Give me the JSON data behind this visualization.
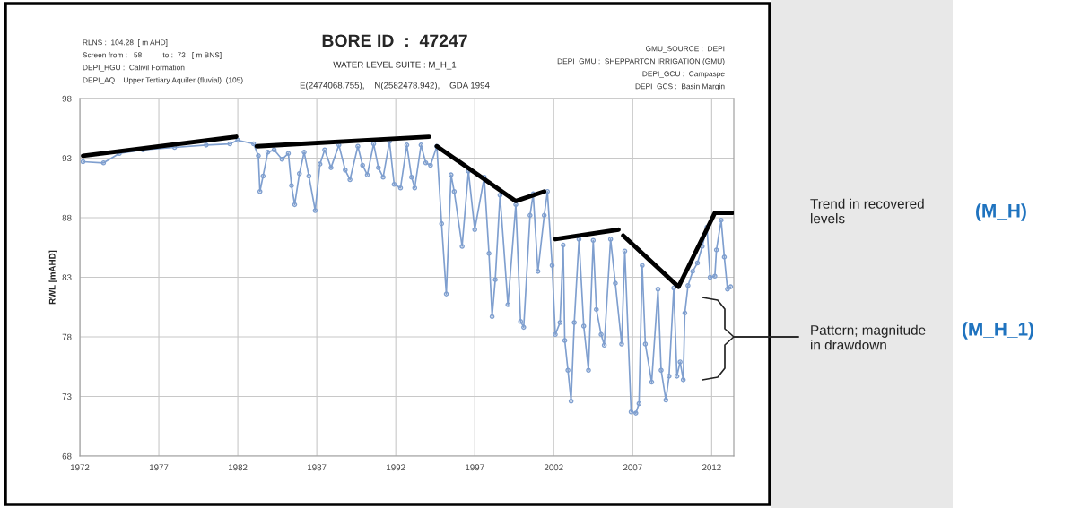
{
  "chart_data": {
    "type": "line",
    "title": "BORE ID  :  47247",
    "subtitle": "WATER LEVEL SUITE : M_H_1",
    "ylabel": "RWL [mAHD]",
    "xlim": [
      1972,
      2013.4
    ],
    "xticks": [
      1972,
      1977,
      1982,
      1987,
      1992,
      1997,
      2002,
      2007,
      2012
    ],
    "ylim": [
      68,
      98
    ],
    "yticks": [
      68,
      73,
      78,
      83,
      88,
      93,
      98
    ],
    "grid": true,
    "annotations": [
      "RLNS :  104.28  [ m AHD]",
      "Screen from :   58          to :  73   [ m BNS]",
      "DEPI_HGU :  Calivil Formation",
      "DEPI_AQ :  Upper Tertiary Aquifer (fluvial)  (105)",
      "E(2474068.755),    N(2582478.942),    GDA 1994",
      "GMU_SOURCE :  DEPI",
      "DEPI_GMU :  SHEPPARTON IRRIGATION (GMU)",
      "DEPI_GCU :  Campaspe",
      "DEPI_GCS :  Basin Margin",
      "Trend in recovered\nlevels",
      "(M_H)",
      "Pattern; magnitude\nin drawdown",
      "(M_H_1)"
    ],
    "series": [
      {
        "color": "#7f9fcf",
        "marker": "circle",
        "x": [
          1972.2,
          1973.5,
          1974.5,
          1976,
          1978,
          1980,
          1981.5,
          1982,
          1983,
          1983.3,
          1983.4,
          1983.6,
          1983.9,
          1984.3,
          1984.8,
          1985.2,
          1985.4,
          1985.6,
          1985.9,
          1986.2,
          1986.5,
          1986.9,
          1987.2,
          1987.5,
          1987.9,
          1988.4,
          1988.8,
          1989.1,
          1989.6,
          1989.9,
          1990.2,
          1990.6,
          1990.9,
          1991.2,
          1991.6,
          1991.9,
          1992.3,
          1992.7,
          1993.0,
          1993.2,
          1993.6,
          1993.9,
          1994.2,
          1994.6,
          1994.9,
          1995.2,
          1995.5,
          1995.7,
          1996.2,
          1996.6,
          1997.0,
          1997.6,
          1997.9,
          1998.1,
          1998.3,
          1998.6,
          1999.1,
          1999.6,
          1999.9,
          2000.1,
          2000.5,
          2000.7,
          2001.0,
          2001.4,
          2001.6,
          2001.9,
          2002.1,
          2002.4,
          2002.6,
          2002.7,
          2002.9,
          2003.1,
          2003.3,
          2003.6,
          2003.9,
          2004.2,
          2004.5,
          2004.7,
          2005.0,
          2005.2,
          2005.6,
          2005.9,
          2006.3,
          2006.5,
          2006.9,
          2007.2,
          2007.4,
          2007.6,
          2007.8,
          2008.2,
          2008.6,
          2008.8,
          2009.1,
          2009.3,
          2009.6,
          2009.8,
          2010.0,
          2010.2,
          2010.3,
          2010.5,
          2010.8,
          2011.1,
          2011.4,
          2011.7,
          2011.9,
          2012.2,
          2012.3,
          2012.6,
          2012.8,
          2013.0,
          2013.2
        ],
        "values": [
          92.7,
          92.6,
          93.4,
          93.7,
          93.9,
          94.1,
          94.2,
          94.5,
          94.2,
          93.2,
          90.2,
          91.5,
          93.5,
          93.7,
          92.9,
          93.4,
          90.7,
          89.1,
          91.7,
          93.5,
          91.5,
          88.6,
          92.5,
          93.7,
          92.2,
          94.1,
          92.0,
          91.2,
          94.0,
          92.4,
          91.6,
          94.2,
          92.2,
          91.4,
          94.4,
          90.8,
          90.5,
          94.1,
          91.4,
          90.5,
          94.1,
          92.6,
          92.4,
          94.0,
          87.5,
          81.6,
          91.6,
          90.2,
          85.6,
          91.9,
          87.0,
          91.4,
          85.0,
          79.7,
          82.8,
          89.9,
          80.7,
          89.1,
          79.3,
          78.8,
          88.2,
          90.0,
          83.5,
          88.2,
          90.2,
          84.0,
          78.2,
          79.2,
          85.7,
          77.7,
          75.2,
          72.6,
          79.2,
          86.2,
          78.9,
          75.2,
          86.1,
          80.3,
          78.2,
          77.3,
          86.2,
          82.5,
          77.4,
          85.2,
          71.7,
          71.6,
          72.4,
          84.0,
          77.4,
          74.2,
          82.0,
          75.2,
          72.7,
          74.7,
          82.1,
          74.7,
          75.9,
          74.4,
          80.0,
          82.3,
          83.5,
          84.2,
          85.6,
          87.2,
          83.0,
          83.1,
          85.3,
          87.8,
          84.7,
          82.0,
          82.2
        ]
      },
      {
        "color": "#000000",
        "x": [
          1972.2,
          1981.9,
          1982.5,
          1983.2,
          1994.1,
          1994.3,
          1994.6,
          1999.6,
          2001.4,
          2001.7,
          2002.1,
          2006.1,
          2006.2,
          2006.4,
          2009.9,
          2012.2,
          2013.3
        ],
        "values": [
          93.2,
          94.8,
          null,
          94.0,
          94.8,
          null,
          94.0,
          89.4,
          90.2,
          null,
          86.2,
          87.0,
          null,
          86.5,
          82.2,
          88.4,
          88.4
        ]
      }
    ]
  }
}
